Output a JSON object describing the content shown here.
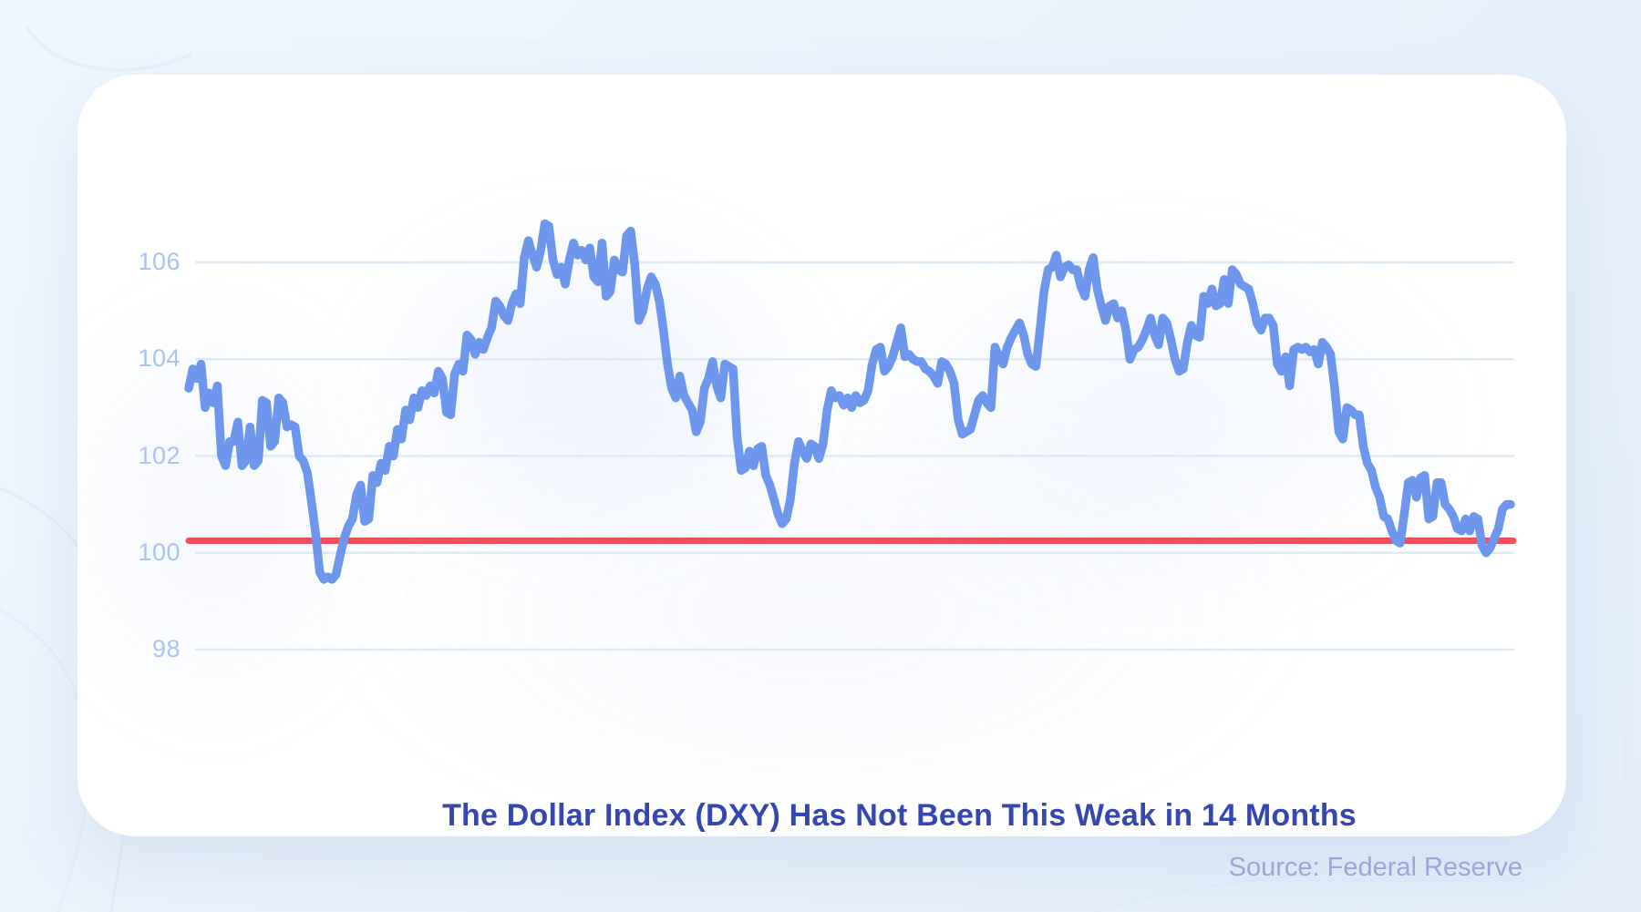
{
  "chart_data": {
    "type": "line",
    "title": "The Dollar Index (DXY) Has Not Been This Weak in 14 Months",
    "grid": true,
    "legend": false,
    "ylim": [
      97.5,
      107.5
    ],
    "y_axis": {
      "ticks": [
        106,
        104,
        102,
        100,
        98
      ]
    },
    "threshold_line": {
      "value": 100.25,
      "color": "#f14f5b"
    },
    "series": [
      {
        "name": "DXY",
        "color": "#6d97ec",
        "values": [
          103.4,
          103.8,
          103.6,
          103.9,
          103.0,
          103.3,
          103.1,
          103.45,
          102.0,
          101.8,
          102.3,
          102.3,
          102.7,
          101.8,
          101.9,
          102.6,
          101.8,
          101.9,
          103.15,
          103.1,
          102.2,
          102.3,
          103.2,
          103.1,
          102.6,
          102.65,
          102.6,
          102.0,
          101.9,
          101.65,
          101.05,
          100.4,
          99.6,
          99.45,
          99.5,
          99.45,
          99.55,
          99.95,
          100.3,
          100.55,
          100.7,
          101.2,
          101.4,
          100.65,
          100.7,
          101.6,
          101.45,
          101.85,
          101.7,
          102.2,
          102.0,
          102.55,
          102.35,
          102.95,
          102.75,
          103.2,
          103.0,
          103.35,
          103.25,
          103.45,
          103.3,
          103.75,
          103.6,
          102.9,
          102.85,
          103.7,
          103.9,
          103.75,
          104.5,
          104.4,
          104.1,
          104.35,
          104.2,
          104.45,
          104.65,
          105.2,
          105.1,
          104.9,
          104.8,
          105.15,
          105.35,
          105.15,
          106.1,
          106.45,
          106.15,
          105.9,
          106.25,
          106.8,
          106.75,
          106.05,
          105.75,
          105.9,
          105.55,
          106.05,
          106.4,
          106.15,
          106.25,
          106.05,
          106.3,
          105.7,
          105.6,
          106.4,
          105.3,
          105.4,
          106.05,
          105.85,
          105.8,
          106.55,
          106.65,
          105.95,
          104.8,
          105.0,
          105.45,
          105.7,
          105.55,
          105.2,
          104.6,
          103.9,
          103.4,
          103.2,
          103.65,
          103.25,
          103.1,
          102.95,
          102.5,
          102.7,
          103.4,
          103.6,
          103.95,
          103.45,
          103.2,
          103.9,
          103.85,
          103.8,
          102.4,
          101.7,
          101.75,
          102.1,
          101.8,
          102.15,
          102.2,
          101.6,
          101.4,
          101.1,
          100.8,
          100.6,
          100.7,
          101.1,
          101.85,
          102.3,
          102.1,
          101.95,
          102.25,
          102.2,
          101.95,
          102.25,
          102.95,
          103.35,
          103.2,
          103.25,
          103.05,
          103.2,
          103.0,
          103.25,
          103.1,
          103.15,
          103.35,
          103.9,
          104.2,
          104.25,
          103.75,
          103.85,
          104.05,
          104.35,
          104.65,
          104.05,
          104.1,
          104.0,
          103.95,
          103.95,
          103.8,
          103.75,
          103.65,
          103.5,
          103.95,
          103.9,
          103.75,
          103.5,
          102.75,
          102.45,
          102.5,
          102.55,
          102.85,
          103.15,
          103.25,
          103.1,
          103.0,
          104.25,
          104.05,
          103.9,
          104.25,
          104.45,
          104.6,
          104.75,
          104.5,
          104.1,
          103.9,
          103.85,
          104.6,
          105.4,
          105.85,
          105.9,
          106.15,
          105.7,
          105.9,
          105.95,
          105.85,
          105.85,
          105.5,
          105.3,
          105.85,
          106.1,
          105.45,
          105.1,
          104.8,
          105.1,
          105.15,
          104.85,
          105.0,
          104.6,
          104.0,
          104.2,
          104.25,
          104.4,
          104.6,
          104.85,
          104.5,
          104.3,
          104.85,
          104.75,
          104.4,
          104.0,
          103.75,
          103.8,
          104.35,
          104.7,
          104.5,
          104.45,
          105.3,
          105.15,
          105.45,
          105.1,
          105.15,
          105.65,
          105.15,
          105.85,
          105.75,
          105.55,
          105.5,
          105.45,
          105.15,
          104.75,
          104.6,
          104.85,
          104.85,
          104.7,
          103.9,
          103.75,
          104.05,
          103.45,
          104.2,
          104.25,
          104.2,
          104.25,
          104.15,
          104.2,
          103.9,
          104.35,
          104.25,
          104.1,
          103.4,
          102.5,
          102.35,
          103.0,
          102.95,
          102.85,
          102.85,
          102.2,
          101.85,
          101.7,
          101.35,
          101.15,
          100.75,
          100.7,
          100.45,
          100.25,
          100.2,
          100.8,
          101.45,
          101.5,
          101.15,
          101.55,
          101.6,
          100.7,
          100.75,
          101.45,
          101.45,
          101.0,
          100.9,
          100.75,
          100.5,
          100.45,
          100.7,
          100.45,
          100.75,
          100.7,
          100.15,
          100.0,
          100.1,
          100.3,
          100.5,
          100.9,
          101.0,
          101.0
        ]
      }
    ]
  },
  "footer": {
    "source": "Source: Federal Reserve"
  },
  "colors": {
    "line": "#6d97ec",
    "threshold": "#f14f5b",
    "gridline": "#dceaf8",
    "tick_label": "#a9c3f3",
    "title": "#3646b1",
    "source": "#9aa6da",
    "card_background": "#ffffff",
    "page_background": "#e9f1fb"
  }
}
